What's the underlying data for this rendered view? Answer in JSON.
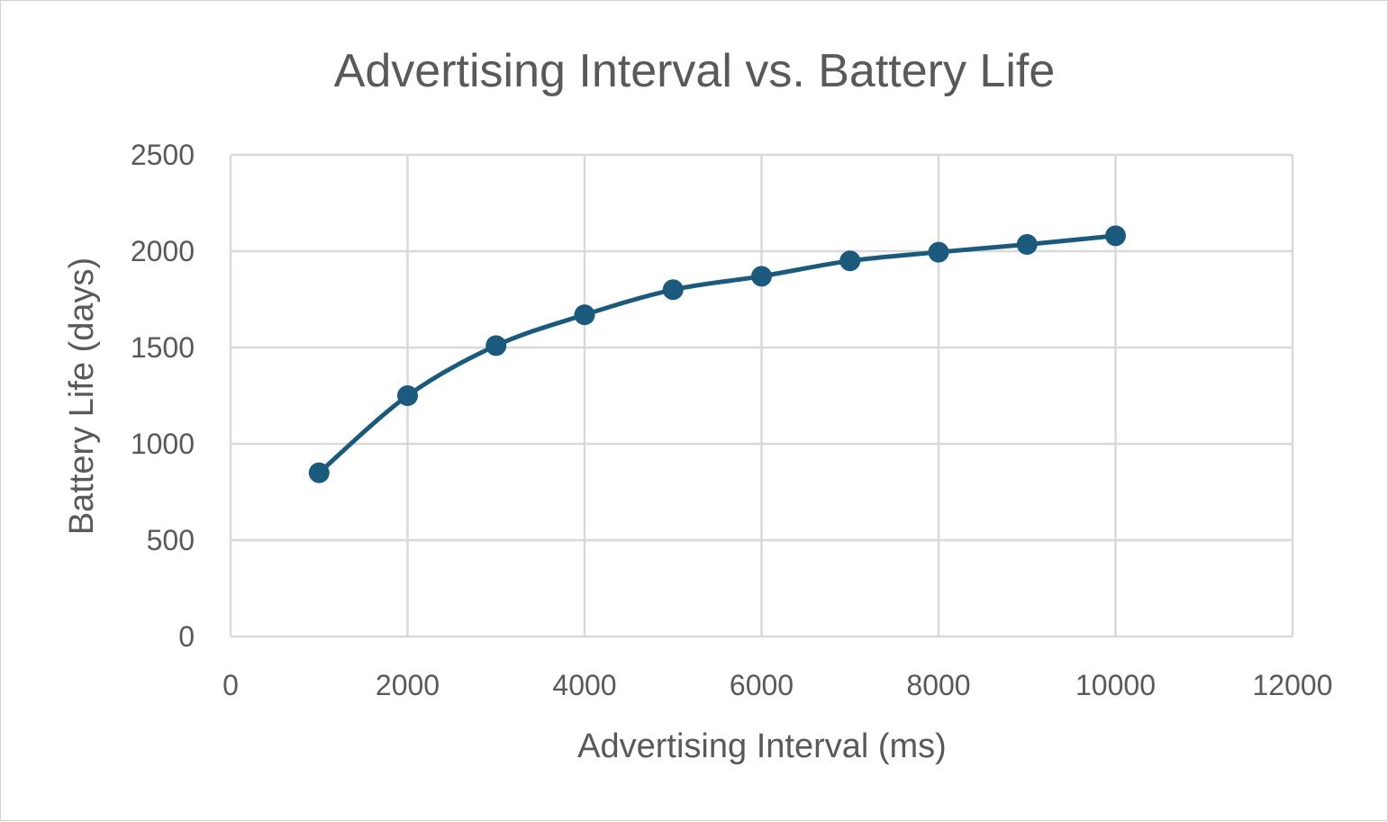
{
  "chart_data": {
    "type": "scatter",
    "title": "Advertising Interval vs. Battery Life",
    "xlabel": "Advertising Interval (ms)",
    "ylabel": "Battery Life (days)",
    "xlim": [
      0,
      12000
    ],
    "ylim": [
      0,
      2500
    ],
    "x_ticks": [
      0,
      2000,
      4000,
      6000,
      8000,
      10000,
      12000
    ],
    "y_ticks": [
      0,
      500,
      1000,
      1500,
      2000,
      2500
    ],
    "grid": true,
    "legend": "none",
    "series": [
      {
        "color": "#1b5a7d",
        "line": "smooth",
        "markers": true,
        "x": [
          1000,
          2000,
          3000,
          4000,
          5000,
          6000,
          7000,
          8000,
          9000,
          10000
        ],
        "y": [
          850,
          1250,
          1510,
          1670,
          1800,
          1870,
          1950,
          1995,
          2035,
          2080
        ]
      }
    ]
  }
}
